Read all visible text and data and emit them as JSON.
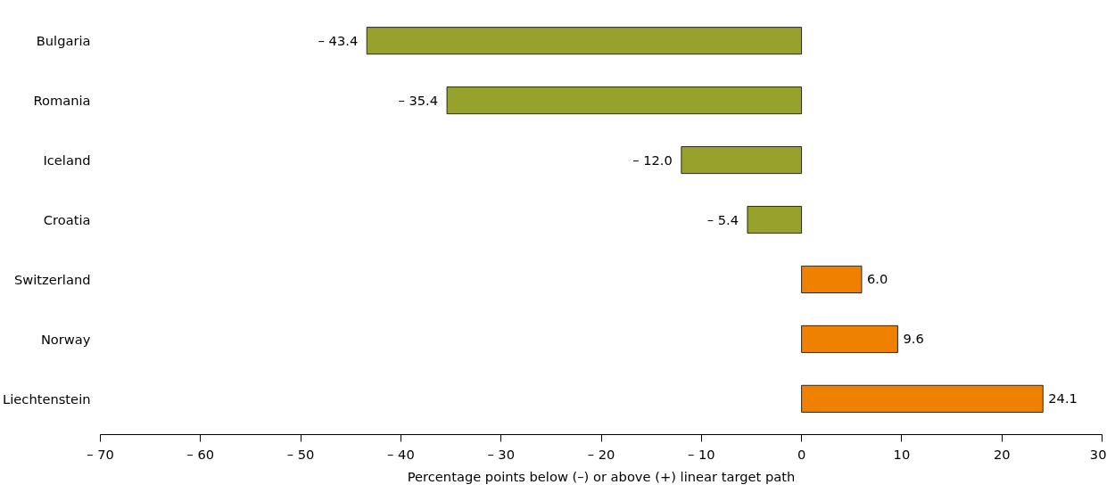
{
  "chart_data": {
    "type": "bar",
    "orientation": "horizontal",
    "categories": [
      "Bulgaria",
      "Romania",
      "Iceland",
      "Croatia",
      "Switzerland",
      "Norway",
      "Liechtenstein"
    ],
    "values": [
      -43.4,
      -35.4,
      -12.0,
      -5.4,
      6.0,
      9.6,
      24.1
    ],
    "colors": [
      "#96a22b",
      "#96a22b",
      "#96a22b",
      "#96a22b",
      "#f08000",
      "#f08000",
      "#f08000"
    ],
    "value_labels": [
      "– 43.4",
      "– 35.4",
      "– 12.0",
      "– 5.4",
      "6.0",
      "9.6",
      "24.1"
    ],
    "xlabel": "Percentage points below (–) or above (+) linear target path",
    "xlim": [
      -70,
      30
    ],
    "xticks": [
      {
        "value": -70,
        "label": "– 70"
      },
      {
        "value": -60,
        "label": "– 60"
      },
      {
        "value": -50,
        "label": "– 50"
      },
      {
        "value": -40,
        "label": "– 40"
      },
      {
        "value": -30,
        "label": "– 30"
      },
      {
        "value": -20,
        "label": "– 20"
      },
      {
        "value": -10,
        "label": "– 10"
      },
      0,
      10,
      20,
      30
    ],
    "grid": false
  }
}
